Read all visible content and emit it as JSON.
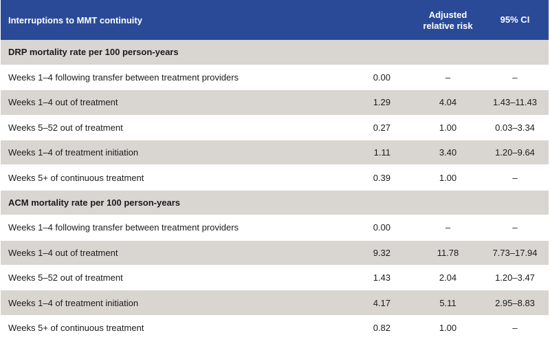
{
  "header": {
    "col1": "Interruptions to MMT continuity",
    "col2": "",
    "col3_line1": "Adjusted",
    "col3_line2": "relative risk",
    "col4": "95% CI"
  },
  "sections": [
    {
      "title": "DRP mortality rate per 100 person-years",
      "rows": [
        {
          "label": "Weeks 1–4 following transfer between treatment providers",
          "rate": "0.00",
          "rr": "–",
          "ci": "–"
        },
        {
          "label": "Weeks 1–4 out of treatment",
          "rate": "1.29",
          "rr": "4.04",
          "ci": "1.43–11.43"
        },
        {
          "label": "Weeks 5–52 out of treatment",
          "rate": "0.27",
          "rr": "1.00",
          "ci": "0.03–3.34"
        },
        {
          "label": "Weeks 1–4 of treatment initiation",
          "rate": "1.11",
          "rr": "3.40",
          "ci": "1.20–9.64"
        },
        {
          "label": "Weeks 5+ of continuous treatment",
          "rate": "0.39",
          "rr": "1.00",
          "ci": "–"
        }
      ]
    },
    {
      "title": "ACM mortality rate per 100 person-years",
      "rows": [
        {
          "label": "Weeks 1–4 following transfer between treatment providers",
          "rate": "0.00",
          "rr": "–",
          "ci": "–"
        },
        {
          "label": "Weeks 1–4 out of treatment",
          "rate": "9.32",
          "rr": "11.78",
          "ci": "7.73–17.94"
        },
        {
          "label": "Weeks 5–52 out of treatment",
          "rate": "1.43",
          "rr": "2.04",
          "ci": "1.20–3.47"
        },
        {
          "label": "Weeks 1–4 of treatment initiation",
          "rate": "4.17",
          "rr": "5.11",
          "ci": "2.95–8.83"
        },
        {
          "label": "Weeks 5+ of continuous treatment",
          "rate": "0.82",
          "rr": "1.00",
          "ci": "–"
        }
      ]
    }
  ],
  "colors": {
    "header_bg": "#2a4a98",
    "header_text": "#ffffff",
    "band_bg": "#d9d6d2",
    "row_bg": "#ffffff"
  }
}
